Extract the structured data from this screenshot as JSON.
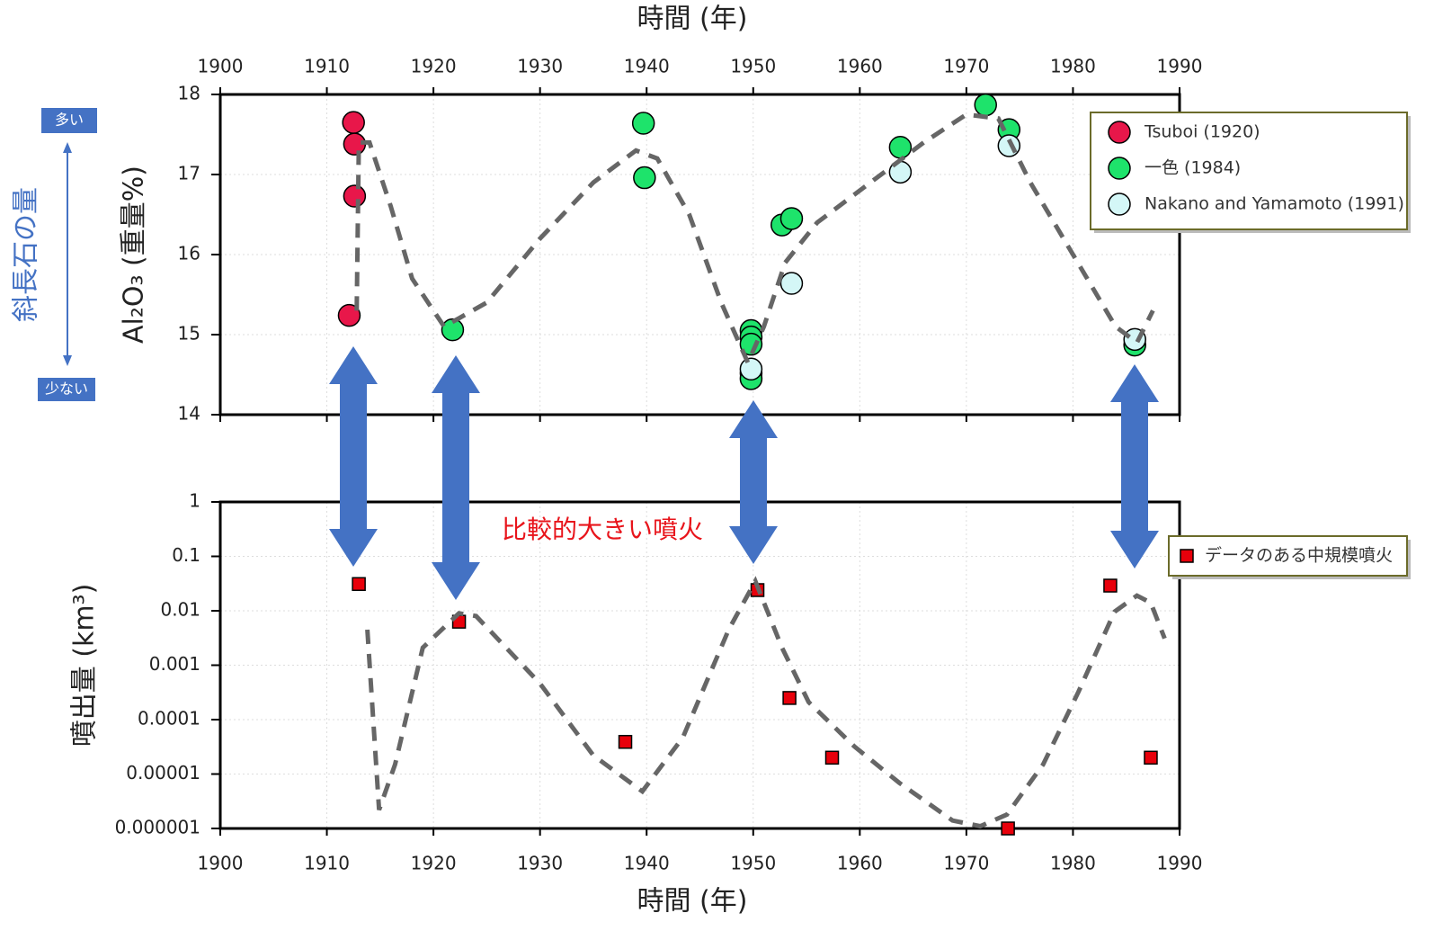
{
  "chart_data": [
    {
      "type": "scatter",
      "xlabel": "時間 (年)",
      "ylabel": "Al₂O₃ (重量%)",
      "side_label": "斜長石の量",
      "side_high": "多い",
      "side_low": "少ない",
      "xlim": [
        1900,
        1990
      ],
      "xticks": [
        1900,
        1910,
        1920,
        1930,
        1940,
        1950,
        1960,
        1970,
        1980,
        1990
      ],
      "ylim": [
        14,
        18
      ],
      "yticks": [
        14,
        15,
        16,
        17,
        18
      ],
      "grid": true,
      "legend": "upper right",
      "series": [
        {
          "name": "Tsuboi (1920)",
          "color": "#e8174a",
          "marker": "circle",
          "x": [
            1912.5,
            1912.6,
            1912.6,
            1912.1
          ],
          "values": [
            17.65,
            17.38,
            16.73,
            15.24
          ]
        },
        {
          "name": "一色 (1984)",
          "color": "#1ee36b",
          "marker": "circle",
          "x": [
            1921.8,
            1939.7,
            1939.8,
            1949.8,
            1949.8,
            1949.8,
            1949.8,
            1949.8,
            1952.7,
            1953.6,
            1963.8,
            1971.8,
            1974.0,
            1985.8
          ],
          "values": [
            15.06,
            17.64,
            16.96,
            15.05,
            14.97,
            14.88,
            14.52,
            14.45,
            16.37,
            16.45,
            17.34,
            17.87,
            17.56,
            14.87
          ]
        },
        {
          "name": "Nakano and Yamamoto (1991)",
          "color": "#d4f7f7",
          "marker": "circle",
          "x": [
            1949.8,
            1953.6,
            1963.8,
            1974.0,
            1985.8
          ],
          "values": [
            14.57,
            15.64,
            17.03,
            17.36,
            14.94
          ]
        },
        {
          "color": "#666666",
          "style": "dashed",
          "x": [
            1912.8,
            1913,
            1914,
            1916,
            1918,
            1921,
            1925,
            1930,
            1935,
            1939,
            1941,
            1944,
            1947,
            1949.5,
            1951,
            1953,
            1956,
            1961,
            1966,
            1970,
            1973,
            1976,
            1980,
            1984,
            1986,
            1987.5
          ],
          "values": [
            15.3,
            17.4,
            17.4,
            16.6,
            15.7,
            15.1,
            15.4,
            16.2,
            16.9,
            17.3,
            17.2,
            16.5,
            15.4,
            14.65,
            15.1,
            15.9,
            16.4,
            16.9,
            17.4,
            17.75,
            17.7,
            16.9,
            16.0,
            15.1,
            14.9,
            15.3
          ]
        }
      ]
    },
    {
      "type": "scatter",
      "xlabel": "時間 (年)",
      "ylabel": "噴出量 (km³)",
      "annotation": "比較的大きい噴火",
      "xlim": [
        1900,
        1990
      ],
      "xticks": [
        1900,
        1910,
        1920,
        1930,
        1940,
        1950,
        1960,
        1970,
        1980,
        1990
      ],
      "ylim": [
        1e-06,
        1
      ],
      "yticks": [
        1,
        0.1,
        0.01,
        0.001,
        0.0001,
        1e-05,
        1e-06
      ],
      "log_y": true,
      "grid": true,
      "legend": "upper right",
      "series": [
        {
          "name": "データのある中規模噴火",
          "color": "#e8000b",
          "marker": "square",
          "x": [
            1913,
            1922.4,
            1938,
            1950.4,
            1953.4,
            1957.4,
            1973.9,
            1983.5,
            1987.3
          ],
          "values": [
            0.031,
            0.0063,
            3.9e-05,
            0.024,
            0.00025,
            2e-05,
            1e-06,
            0.029,
            2e-05
          ],
          "xerr": [
            0.6,
            null,
            null,
            null,
            null,
            null,
            null,
            null,
            null
          ]
        },
        {
          "color": "#666666",
          "style": "dashed",
          "x": [
            1913.8,
            1914.9,
            1916.4,
            1919,
            1922.4,
            1924,
            1930,
            1935,
            1939.6,
            1943.4,
            1947.7,
            1950.2,
            1952.7,
            1955.2,
            1959.5,
            1963.7,
            1968.7,
            1971.3,
            1973.8,
            1977.2,
            1980.5,
            1983.9,
            1986,
            1987.3,
            1988.6
          ],
          "values": [
            0.0045,
            2.2e-06,
            1.5e-05,
            0.0021,
            0.009,
            0.008,
            0.00046,
            2.2e-05,
            4.8e-06,
            4.7e-05,
            0.0045,
            0.035,
            0.0021,
            0.00021,
            3.2e-05,
            6.9e-06,
            1.4e-06,
            1.1e-06,
            1.8e-06,
            1.5e-05,
            0.00032,
            0.0096,
            0.019,
            0.014,
            0.0031
          ]
        }
      ]
    }
  ]
}
